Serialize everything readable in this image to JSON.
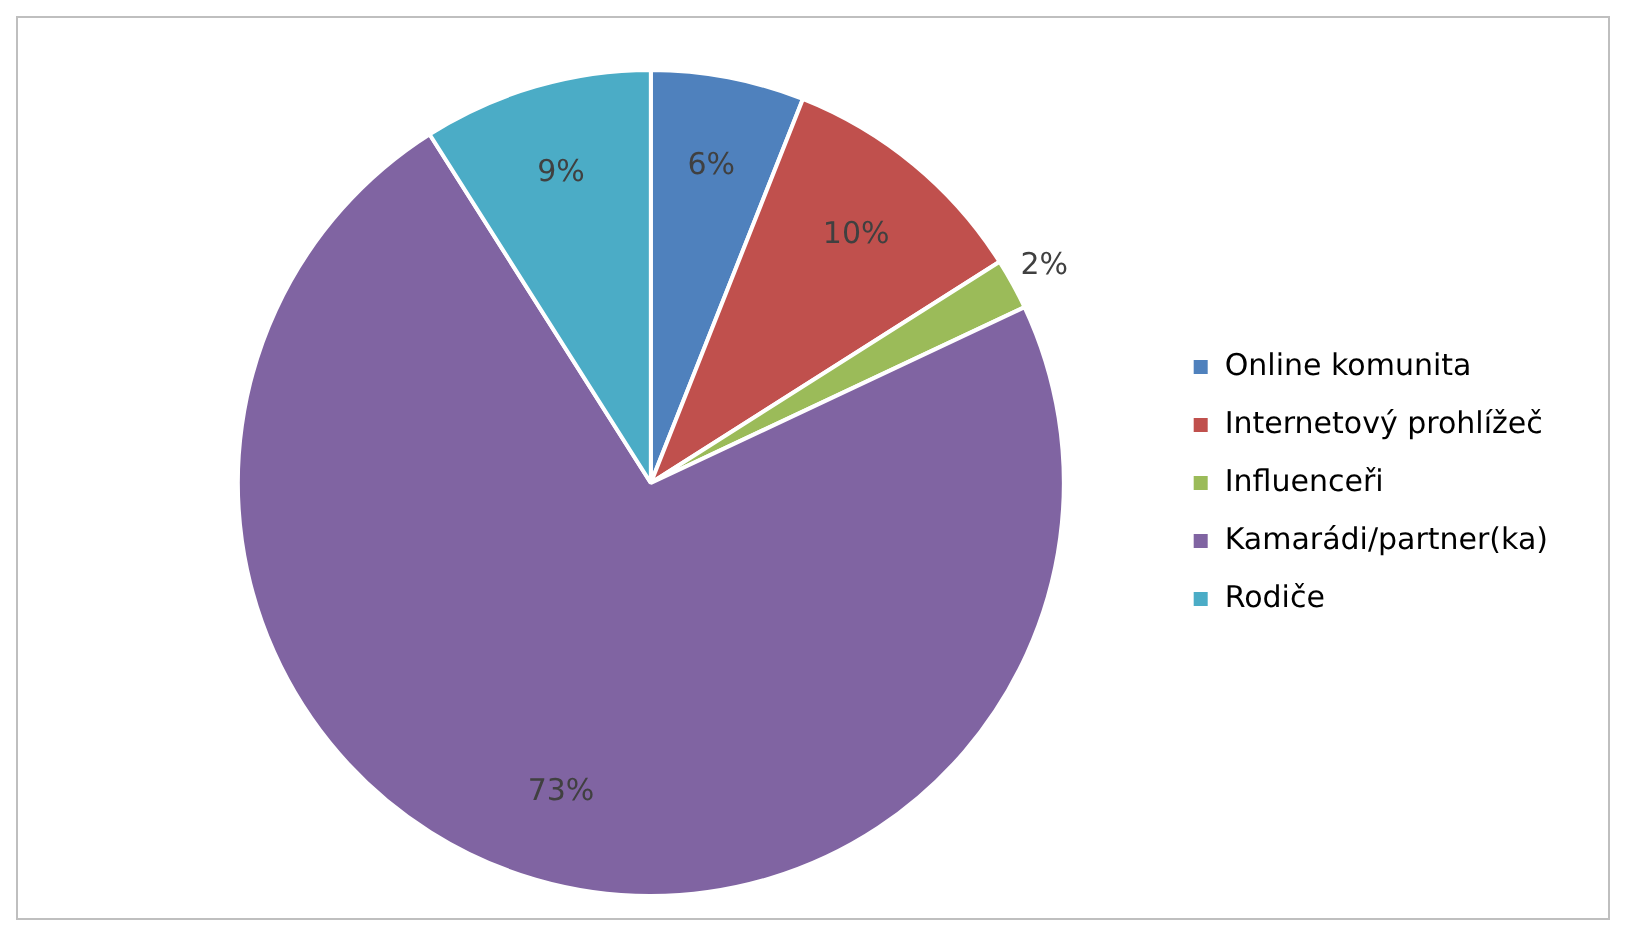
{
  "chart_data": {
    "type": "pie",
    "categories": [
      "Online komunita",
      "Internetový prohlížeč",
      "Influenceři",
      "Kamarádi/partner(ka)",
      "Rodiče"
    ],
    "values": [
      6,
      10,
      2,
      73,
      9
    ],
    "colors": [
      "#4f81bd",
      "#c0504d",
      "#9bbb59",
      "#8064a2",
      "#4bacc6"
    ],
    "value_labels": [
      "6%",
      "10%",
      "2%",
      "73%",
      "9%"
    ],
    "legend": "right"
  }
}
